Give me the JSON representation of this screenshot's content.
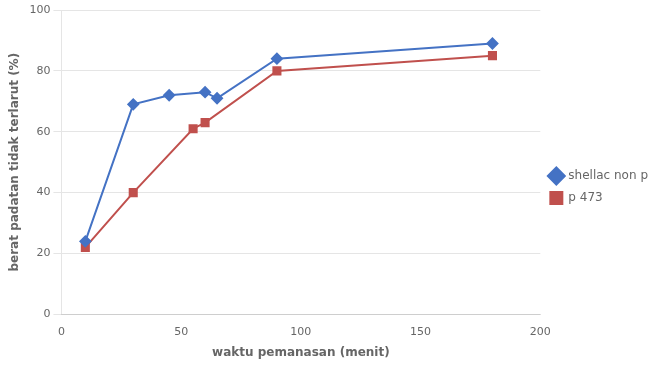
{
  "chart_data": {
    "type": "line",
    "xlabel": "waktu pemanasan (menit)",
    "ylabel": "berat padatan tidak terlarut (%)",
    "series": [
      {
        "name": "shellac non p",
        "color": "#4472C4",
        "marker": "diamond",
        "x": [
          10,
          30,
          45,
          60,
          65,
          90,
          180
        ],
        "values": [
          24,
          69,
          72,
          73,
          71,
          84,
          89
        ]
      },
      {
        "name": "p 473",
        "color": "#C0504D",
        "marker": "square",
        "x": [
          10,
          30,
          55,
          60,
          90,
          180
        ],
        "values": [
          22,
          40,
          61,
          63,
          80,
          85
        ]
      }
    ],
    "xlim": [
      0,
      200
    ],
    "xticks": [
      0,
      50,
      100,
      150,
      200
    ],
    "ylim": [
      0,
      100
    ],
    "yticks": [
      0,
      20,
      40,
      60,
      80,
      100
    ],
    "grid": "y",
    "legend": "right"
  }
}
